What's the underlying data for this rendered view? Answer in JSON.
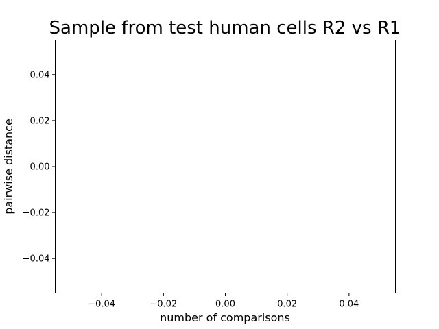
{
  "chart_data": {
    "type": "scatter",
    "title": "Sample from test human cells R2 vs R1",
    "xlabel": "number of comparisons",
    "ylabel": "pairwise distance",
    "xlim": [
      -0.055,
      0.055
    ],
    "ylim": [
      -0.055,
      0.055
    ],
    "x_ticks": [
      -0.04,
      -0.02,
      0.0,
      0.02,
      0.04
    ],
    "x_tick_labels": [
      "−0.04",
      "−0.02",
      "0.00",
      "0.02",
      "0.04"
    ],
    "y_ticks": [
      -0.04,
      -0.02,
      0.0,
      0.02,
      0.04
    ],
    "y_tick_labels": [
      "−0.04",
      "−0.02",
      "0.00",
      "0.02",
      "0.04"
    ],
    "grid": false,
    "series": [
      {
        "x": [],
        "y": []
      }
    ]
  }
}
